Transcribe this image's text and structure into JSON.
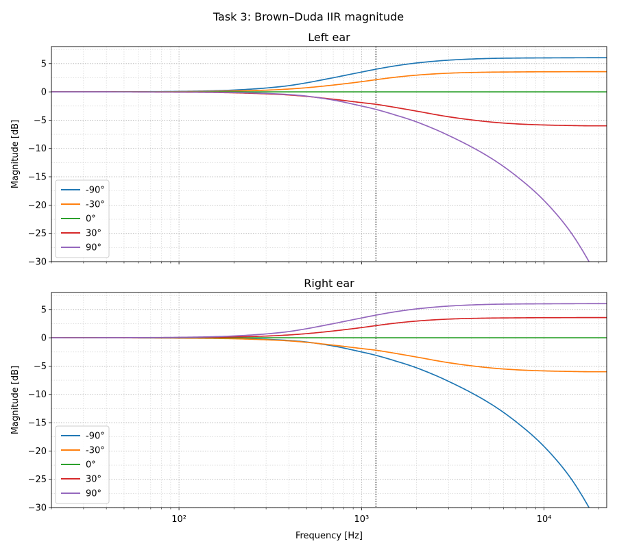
{
  "figure": {
    "suptitle": "Task 3: Brown–Duda IIR magnitude"
  },
  "chart_data": [
    {
      "type": "line",
      "title": "Left ear",
      "xlabel": "",
      "ylabel": "Magnitude [dB]",
      "xscale": "log",
      "xlim": [
        20,
        22050
      ],
      "ylim": [
        -30,
        8
      ],
      "xticks": [
        100,
        1000,
        10000
      ],
      "yticks": [
        5,
        0,
        -5,
        -10,
        -15,
        -20,
        -25,
        -30
      ],
      "grid": "major and minor, dotted",
      "legend_position": "lower left",
      "annotation_vline_hz": 1200,
      "x": [
        20,
        50,
        100,
        150,
        200,
        300,
        400,
        500,
        700,
        1000,
        1200,
        1500,
        2000,
        3000,
        5000,
        7000,
        10000,
        14000,
        18000,
        22050
      ],
      "series": [
        {
          "name": "-90°",
          "color": "#1f77b4",
          "values": [
            0,
            0.02,
            0.08,
            0.18,
            0.32,
            0.68,
            1.1,
            1.6,
            2.5,
            3.5,
            4.0,
            4.55,
            5.1,
            5.6,
            5.9,
            5.97,
            6.0,
            6.02,
            6.03,
            6.03
          ]
        },
        {
          "name": "-30°",
          "color": "#ff7f0e",
          "values": [
            0,
            0.01,
            0.04,
            0.09,
            0.15,
            0.3,
            0.5,
            0.73,
            1.2,
            1.8,
            2.15,
            2.55,
            2.95,
            3.3,
            3.48,
            3.52,
            3.55,
            3.56,
            3.57,
            3.57
          ]
        },
        {
          "name": "0°",
          "color": "#2ca02c",
          "values": [
            0,
            0,
            0,
            0,
            0,
            0,
            0,
            0,
            0,
            0,
            0,
            0,
            0,
            0,
            0,
            0,
            0,
            0,
            0,
            0
          ]
        },
        {
          "name": "30°",
          "color": "#d62728",
          "values": [
            0,
            -0.01,
            -0.05,
            -0.1,
            -0.17,
            -0.35,
            -0.55,
            -0.8,
            -1.3,
            -1.9,
            -2.2,
            -2.7,
            -3.4,
            -4.4,
            -5.3,
            -5.65,
            -5.85,
            -5.95,
            -6.0,
            -6.0
          ]
        },
        {
          "name": "90°",
          "color": "#9467bd",
          "values": [
            0,
            -0.01,
            -0.03,
            -0.07,
            -0.12,
            -0.27,
            -0.48,
            -0.75,
            -1.45,
            -2.5,
            -3.1,
            -4.0,
            -5.3,
            -7.7,
            -11.5,
            -14.8,
            -19.2,
            -24.8,
            -30.5,
            -36
          ]
        }
      ]
    },
    {
      "type": "line",
      "title": "Right ear",
      "xlabel": "Frequency [Hz]",
      "ylabel": "Magnitude [dB]",
      "xscale": "log",
      "xlim": [
        20,
        22050
      ],
      "ylim": [
        -30,
        8
      ],
      "xticks": [
        100,
        1000,
        10000
      ],
      "yticks": [
        5,
        0,
        -5,
        -10,
        -15,
        -20,
        -25,
        -30
      ],
      "grid": "major and minor, dotted",
      "legend_position": "lower left",
      "annotation_vline_hz": 1200,
      "x": [
        20,
        50,
        100,
        150,
        200,
        300,
        400,
        500,
        700,
        1000,
        1200,
        1500,
        2000,
        3000,
        5000,
        7000,
        10000,
        14000,
        18000,
        22050
      ],
      "series": [
        {
          "name": "-90°",
          "color": "#1f77b4",
          "values": [
            0,
            -0.01,
            -0.03,
            -0.07,
            -0.12,
            -0.27,
            -0.48,
            -0.75,
            -1.45,
            -2.5,
            -3.1,
            -4.0,
            -5.3,
            -7.7,
            -11.5,
            -14.8,
            -19.2,
            -24.8,
            -30.5,
            -36
          ]
        },
        {
          "name": "-30°",
          "color": "#ff7f0e",
          "values": [
            0,
            -0.01,
            -0.05,
            -0.1,
            -0.17,
            -0.35,
            -0.55,
            -0.8,
            -1.3,
            -1.9,
            -2.2,
            -2.7,
            -3.4,
            -4.4,
            -5.3,
            -5.65,
            -5.85,
            -5.95,
            -6.0,
            -6.0
          ]
        },
        {
          "name": "0°",
          "color": "#2ca02c",
          "values": [
            0,
            0,
            0,
            0,
            0,
            0,
            0,
            0,
            0,
            0,
            0,
            0,
            0,
            0,
            0,
            0,
            0,
            0,
            0,
            0
          ]
        },
        {
          "name": "30°",
          "color": "#d62728",
          "values": [
            0,
            0.01,
            0.04,
            0.09,
            0.15,
            0.3,
            0.5,
            0.73,
            1.2,
            1.8,
            2.15,
            2.55,
            2.95,
            3.3,
            3.48,
            3.52,
            3.55,
            3.56,
            3.57,
            3.57
          ]
        },
        {
          "name": "90°",
          "color": "#9467bd",
          "values": [
            0,
            0.02,
            0.08,
            0.18,
            0.32,
            0.68,
            1.1,
            1.6,
            2.5,
            3.5,
            4.0,
            4.55,
            5.1,
            5.6,
            5.9,
            5.97,
            6.0,
            6.02,
            6.03,
            6.03
          ]
        }
      ]
    }
  ]
}
